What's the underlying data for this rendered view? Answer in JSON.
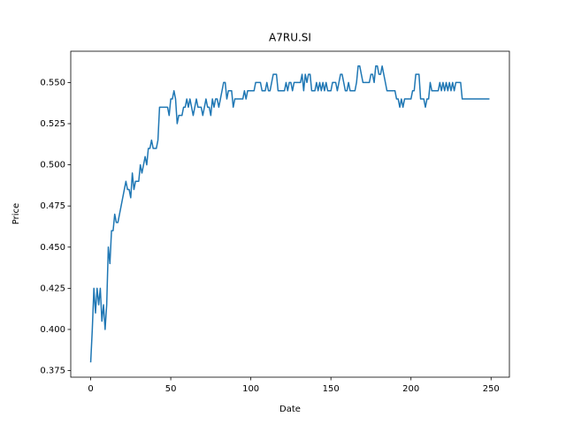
{
  "chart_data": {
    "type": "line",
    "title": "A7RU.SI",
    "xlabel": "Date",
    "ylabel": "Price",
    "x": [
      0,
      1,
      2,
      3,
      4,
      5,
      6,
      7,
      8,
      9,
      10,
      11,
      12,
      13,
      14,
      15,
      16,
      17,
      18,
      19,
      20,
      21,
      22,
      23,
      24,
      25,
      26,
      27,
      28,
      29,
      30,
      31,
      32,
      33,
      34,
      35,
      36,
      37,
      38,
      39,
      40,
      41,
      42,
      43,
      44,
      45,
      46,
      47,
      48,
      49,
      50,
      51,
      52,
      53,
      54,
      55,
      56,
      57,
      58,
      59,
      60,
      61,
      62,
      63,
      64,
      65,
      66,
      67,
      68,
      69,
      70,
      71,
      72,
      73,
      74,
      75,
      76,
      77,
      78,
      79,
      80,
      81,
      82,
      83,
      84,
      85,
      86,
      87,
      88,
      89,
      90,
      91,
      92,
      93,
      94,
      95,
      96,
      97,
      98,
      99,
      100,
      101,
      102,
      103,
      104,
      105,
      106,
      107,
      108,
      109,
      110,
      111,
      112,
      113,
      114,
      115,
      116,
      117,
      118,
      119,
      120,
      121,
      122,
      123,
      124,
      125,
      126,
      127,
      128,
      129,
      130,
      131,
      132,
      133,
      134,
      135,
      136,
      137,
      138,
      139,
      140,
      141,
      142,
      143,
      144,
      145,
      146,
      147,
      148,
      149,
      150,
      151,
      152,
      153,
      154,
      155,
      156,
      157,
      158,
      159,
      160,
      161,
      162,
      163,
      164,
      165,
      166,
      167,
      168,
      169,
      170,
      171,
      172,
      173,
      174,
      175,
      176,
      177,
      178,
      179,
      180,
      181,
      182,
      183,
      184,
      185,
      186,
      187,
      188,
      189,
      190,
      191,
      192,
      193,
      194,
      195,
      196,
      197,
      198,
      199,
      200,
      201,
      202,
      203,
      204,
      205,
      206,
      207,
      208,
      209,
      210,
      211,
      212,
      213,
      214,
      215,
      216,
      217,
      218,
      219,
      220,
      221,
      222,
      223,
      224,
      225,
      226,
      227,
      228,
      229,
      230,
      231,
      232,
      233,
      234,
      235,
      236,
      237,
      238,
      239,
      240,
      241,
      242,
      243,
      244,
      245,
      246,
      247,
      248,
      249
    ],
    "series": [
      {
        "color": "#1f77b4",
        "values": [
          0.38,
          0.4,
          0.425,
          0.41,
          0.425,
          0.415,
          0.425,
          0.405,
          0.415,
          0.4,
          0.415,
          0.45,
          0.44,
          0.46,
          0.46,
          0.47,
          0.465,
          0.465,
          0.47,
          0.475,
          0.48,
          0.485,
          0.49,
          0.485,
          0.485,
          0.48,
          0.495,
          0.485,
          0.49,
          0.49,
          0.49,
          0.5,
          0.495,
          0.5,
          0.505,
          0.5,
          0.51,
          0.51,
          0.515,
          0.51,
          0.51,
          0.51,
          0.515,
          0.535,
          0.535,
          0.535,
          0.535,
          0.535,
          0.535,
          0.53,
          0.54,
          0.54,
          0.545,
          0.54,
          0.525,
          0.53,
          0.53,
          0.53,
          0.535,
          0.535,
          0.54,
          0.535,
          0.54,
          0.535,
          0.53,
          0.535,
          0.54,
          0.535,
          0.535,
          0.535,
          0.53,
          0.535,
          0.54,
          0.535,
          0.535,
          0.53,
          0.54,
          0.535,
          0.54,
          0.54,
          0.535,
          0.54,
          0.545,
          0.55,
          0.55,
          0.54,
          0.545,
          0.545,
          0.545,
          0.535,
          0.54,
          0.54,
          0.54,
          0.54,
          0.54,
          0.54,
          0.545,
          0.54,
          0.545,
          0.545,
          0.545,
          0.545,
          0.545,
          0.55,
          0.55,
          0.55,
          0.55,
          0.545,
          0.545,
          0.545,
          0.55,
          0.545,
          0.545,
          0.55,
          0.555,
          0.555,
          0.555,
          0.545,
          0.545,
          0.545,
          0.545,
          0.545,
          0.55,
          0.545,
          0.55,
          0.55,
          0.545,
          0.55,
          0.55,
          0.55,
          0.55,
          0.55,
          0.555,
          0.545,
          0.555,
          0.55,
          0.555,
          0.555,
          0.545,
          0.545,
          0.545,
          0.55,
          0.545,
          0.55,
          0.545,
          0.55,
          0.545,
          0.55,
          0.545,
          0.545,
          0.545,
          0.55,
          0.55,
          0.55,
          0.545,
          0.55,
          0.555,
          0.555,
          0.55,
          0.545,
          0.545,
          0.55,
          0.545,
          0.545,
          0.545,
          0.545,
          0.55,
          0.56,
          0.56,
          0.555,
          0.55,
          0.55,
          0.55,
          0.55,
          0.55,
          0.555,
          0.555,
          0.55,
          0.56,
          0.56,
          0.555,
          0.555,
          0.56,
          0.555,
          0.55,
          0.545,
          0.545,
          0.545,
          0.545,
          0.545,
          0.545,
          0.54,
          0.54,
          0.535,
          0.54,
          0.535,
          0.54,
          0.54,
          0.54,
          0.54,
          0.54,
          0.545,
          0.545,
          0.555,
          0.555,
          0.555,
          0.54,
          0.54,
          0.54,
          0.535,
          0.54,
          0.54,
          0.55,
          0.545,
          0.545,
          0.545,
          0.545,
          0.545,
          0.55,
          0.545,
          0.55,
          0.545,
          0.55,
          0.545,
          0.55,
          0.545,
          0.55,
          0.545,
          0.55,
          0.55,
          0.55,
          0.55,
          0.54,
          0.54,
          0.54,
          0.54,
          0.54,
          0.54,
          0.54,
          0.54,
          0.54,
          0.54,
          0.54,
          0.54,
          0.54,
          0.54,
          0.54,
          0.54,
          0.54,
          0.54
        ]
      }
    ],
    "xlim": [
      -12.45,
      261.45
    ],
    "xticks": [
      0,
      50,
      100,
      150,
      200,
      250
    ],
    "ylim": [
      0.371,
      0.569
    ],
    "yticks": [
      0.375,
      {
        "value": 0.4,
        "label": "0.400"
      },
      0.425,
      {
        "value": 0.45,
        "label": "0.450"
      },
      0.475,
      {
        "value": 0.5,
        "label": "0.500"
      },
      0.525,
      {
        "value": 0.55,
        "label": "0.550"
      }
    ],
    "grid": false
  }
}
